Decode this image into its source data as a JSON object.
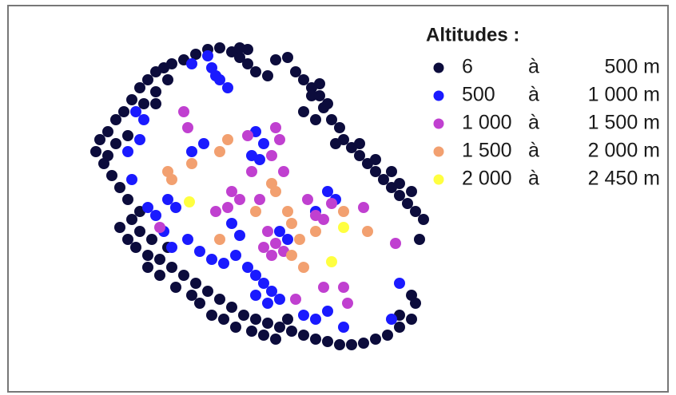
{
  "legend": {
    "title": "Altitudes :",
    "items": [
      {
        "from": "6",
        "sep": "à",
        "to": "500 m",
        "color": "#0c0c3c"
      },
      {
        "from": "500",
        "sep": "à",
        "to": "1 000 m",
        "color": "#1a1aff"
      },
      {
        "from": "1 000",
        "sep": "à",
        "to": "1 500 m",
        "color": "#c040d0"
      },
      {
        "from": "1 500",
        "sep": "à",
        "to": "2 000 m",
        "color": "#f2a070"
      },
      {
        "from": "2 000",
        "sep": "à",
        "to": "2 450 m",
        "color": "#ffff40"
      }
    ]
  }
}
